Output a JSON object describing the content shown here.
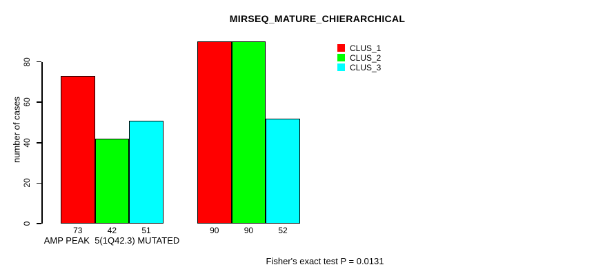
{
  "chart_data": {
    "type": "bar",
    "title": "MIRSEQ_MATURE_CHIERARCHICAL",
    "ylabel": "number of cases",
    "xlabel": "",
    "ylim": [
      0,
      93
    ],
    "yticks": [
      0,
      20,
      40,
      60,
      80
    ],
    "grid": false,
    "legend_position": "top-right",
    "categories": [
      "AMP PEAK  5(1Q42.3) MUTATED",
      ""
    ],
    "series": [
      {
        "name": "CLUS_1",
        "color": "#ff0000",
        "values": [
          73,
          90
        ]
      },
      {
        "name": "CLUS_2",
        "color": "#00ff00",
        "values": [
          42,
          90
        ]
      },
      {
        "name": "CLUS_3",
        "color": "#00ffff",
        "values": [
          51,
          52
        ]
      }
    ],
    "bar_value_labels_shown": true,
    "annotation": "Fisher's exact test P = 0.0131"
  }
}
